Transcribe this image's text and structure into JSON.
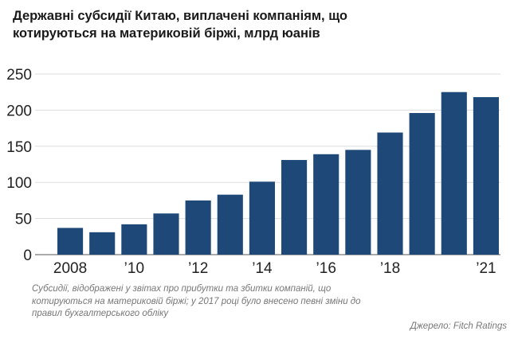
{
  "chart_data": {
    "type": "bar",
    "title_lines": [
      "Державні субсидії Китаю, виплачені компаніям, що",
      "котируються на материковій біржі, млрд юанів"
    ],
    "categories": [
      "2008",
      "2009",
      "2010",
      "2011",
      "2012",
      "2013",
      "2014",
      "2015",
      "2016",
      "2017",
      "2018",
      "2019",
      "2020",
      "2021"
    ],
    "values": [
      37,
      31,
      42,
      57,
      75,
      83,
      101,
      131,
      139,
      145,
      169,
      196,
      225,
      218
    ],
    "x_tick_labels": [
      {
        "index": 0,
        "label": "2008"
      },
      {
        "index": 2,
        "label": "’10"
      },
      {
        "index": 4,
        "label": "’12"
      },
      {
        "index": 6,
        "label": "’14"
      },
      {
        "index": 8,
        "label": "’16"
      },
      {
        "index": 10,
        "label": "’18"
      },
      {
        "index": 13,
        "label": "’21"
      }
    ],
    "y_ticks": [
      0,
      50,
      100,
      150,
      200,
      250
    ],
    "ylim": [
      0,
      250
    ],
    "bar_color": "#1e4877",
    "grid": true,
    "grid_color": "#dddddd",
    "note": "Субсидії, відображені у звітах про прибутки та збитки компаній, що котируються на материковій біржі; у 2017 році було внесено певні зміни до правил бухгалтерського обліку",
    "source": "Джерело: Fitch Ratings"
  }
}
